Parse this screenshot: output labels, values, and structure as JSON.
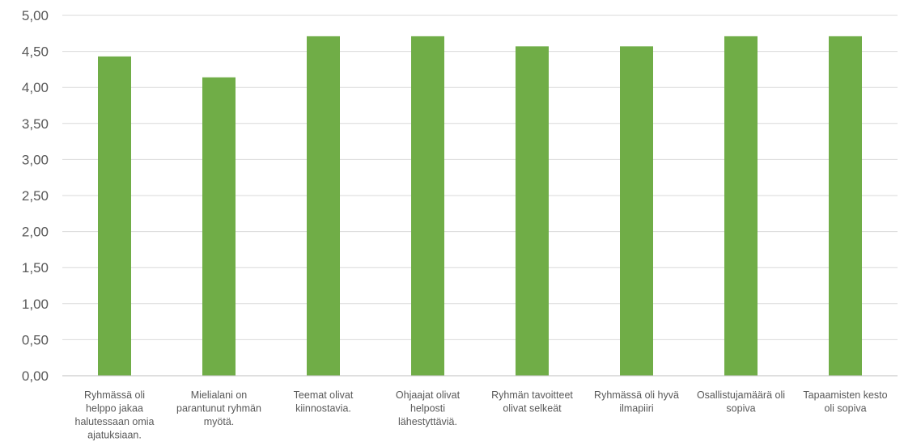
{
  "chart_data": {
    "type": "bar",
    "categories": [
      [
        "Ryhmässä oli",
        "helppo jakaa",
        "halutessaan omia",
        "ajatuksiaan."
      ],
      [
        "Mielialani on",
        "parantunut ryhmän",
        "myötä."
      ],
      [
        "Teemat olivat",
        "kiinnostavia."
      ],
      [
        "Ohjaajat olivat",
        "helposti",
        "lähestyttäviä."
      ],
      [
        "Ryhmän tavoitteet",
        "olivat selkeät"
      ],
      [
        "Ryhmässä oli hyvä",
        "ilmapiiri"
      ],
      [
        "Osallistujamäärä oli",
        "sopiva"
      ],
      [
        "Tapaamisten kesto",
        "oli sopiva"
      ]
    ],
    "values": [
      4.43,
      4.14,
      4.71,
      4.71,
      4.57,
      4.57,
      4.71,
      4.71
    ],
    "ylim": [
      0,
      5
    ],
    "yticks": [
      "0,00",
      "0,50",
      "1,00",
      "1,50",
      "2,00",
      "2,50",
      "3,00",
      "3,50",
      "4,00",
      "4,50",
      "5,00"
    ],
    "grid": true,
    "bar_color": "#70ad47",
    "title": "",
    "xlabel": "",
    "ylabel": ""
  }
}
